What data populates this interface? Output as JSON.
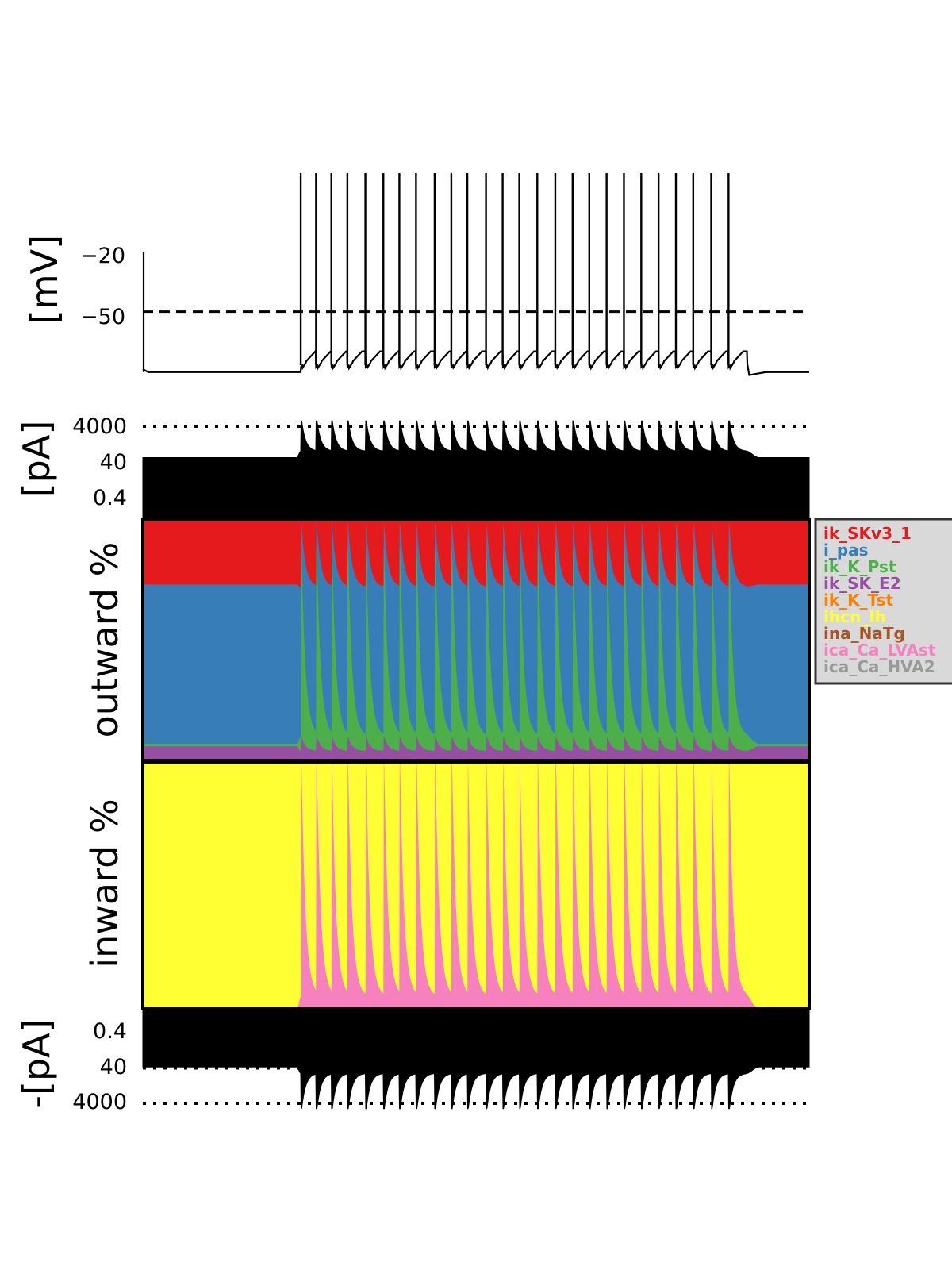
{
  "chart_data": [
    {
      "panel": "voltage",
      "type": "line",
      "ylabel": "[mV]",
      "yticks": [
        "−20",
        "−50"
      ],
      "threshold": -50,
      "threshold_style": "dashed",
      "ylim": [
        -85,
        20
      ],
      "resting_before": -80.5,
      "resting_after": -80.5,
      "trough_during_spiking": -75,
      "spike_peak": 20,
      "spike_count": 26,
      "spike_times": [
        0.237,
        0.26,
        0.283,
        0.307,
        0.334,
        0.361,
        0.385,
        0.41,
        0.438,
        0.463,
        0.487,
        0.515,
        0.54,
        0.565,
        0.592,
        0.619,
        0.645,
        0.67,
        0.696,
        0.722,
        0.748,
        0.774,
        0.8,
        0.826,
        0.853,
        0.879
      ],
      "stimulus_on": 0.233,
      "stimulus_off": 0.905
    },
    {
      "panel": "outward_total",
      "type": "area",
      "ylabel": "[pA]",
      "yscale": "log",
      "yticks": [
        "4000",
        "40",
        "0.4"
      ],
      "ytick_values": [
        4000,
        40,
        0.4
      ],
      "reference_lines": [
        4000,
        40
      ],
      "baseline_level": 70,
      "peak_level": 8000
    },
    {
      "panel": "outward_percent",
      "type": "area",
      "ylabel": "outward %",
      "stacked": true,
      "rest_fractions": {
        "ik_SK_E2": 0.06,
        "ik_K_Pst": 0.01,
        "i_pas": 0.66,
        "ik_SKv3_1": 0.27
      },
      "spike_peak_fractions": {
        "ik_SK_E2": 0.1,
        "ik_K_Pst": 0.78,
        "i_pas": 0.1,
        "ik_SKv3_1": 0.02
      },
      "interspike_trough_fractions": {
        "ik_SK_E2": 0.04,
        "ik_K_Pst": 0.06,
        "i_pas": 0.62,
        "ik_SKv3_1": 0.28
      }
    },
    {
      "panel": "inward_percent",
      "type": "area",
      "ylabel": "inward %",
      "stacked": true,
      "rest_fractions": {
        "ica_Ca_LVAst": 0.0,
        "ihcn_Ih": 1.0
      },
      "spike_peak_fractions": {
        "ica_Ca_LVAst": 1.0,
        "ihcn_Ih": 0.0
      },
      "interspike_trough_fractions": {
        "ica_Ca_LVAst": 0.05,
        "ihcn_Ih": 0.95
      }
    },
    {
      "panel": "inward_total",
      "type": "area",
      "ylabel": "-[pA]",
      "yscale": "log",
      "yticks": [
        "0.4",
        "40",
        "4000"
      ],
      "ytick_values": [
        0.4,
        40,
        4000
      ],
      "reference_lines": [
        40,
        4000
      ],
      "baseline_level": 35,
      "peak_level": 8000
    }
  ],
  "legend": [
    {
      "label": "ik_SKv3_1",
      "color": "#e41a1c"
    },
    {
      "label": "i_pas",
      "color": "#377eb8"
    },
    {
      "label": "ik_K_Pst",
      "color": "#4daf4a"
    },
    {
      "label": "ik_SK_E2",
      "color": "#984ea3"
    },
    {
      "label": "ik_K_Tst",
      "color": "#ff7f00"
    },
    {
      "label": "ihcn_Ih",
      "color": "#ffff33"
    },
    {
      "label": "ina_NaTg",
      "color": "#a65628"
    },
    {
      "label": "ica_Ca_LVAst",
      "color": "#f781bf"
    },
    {
      "label": "ica_Ca_HVA2",
      "color": "#999999"
    }
  ],
  "legend_box_color": "#d9d9d9",
  "legend_placement": "right of percent panels"
}
